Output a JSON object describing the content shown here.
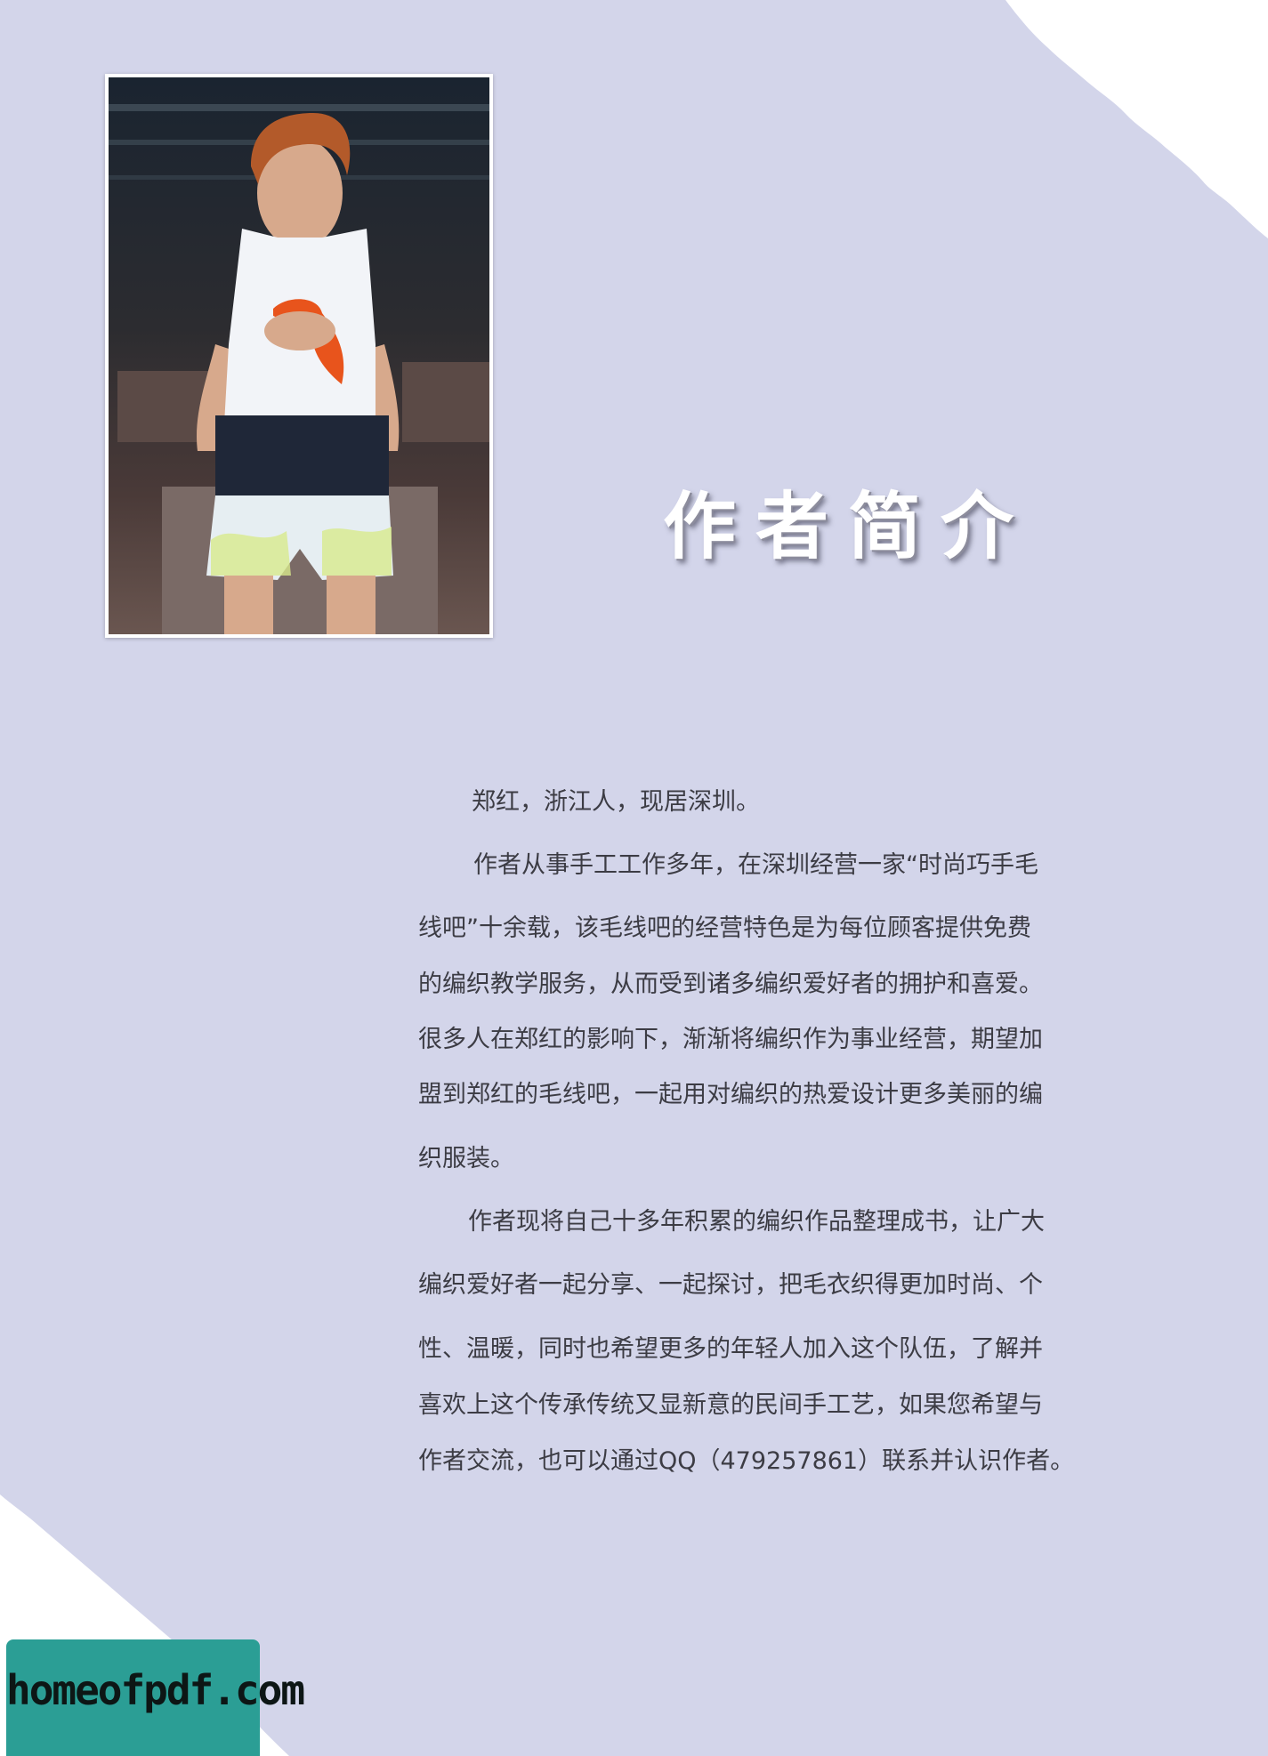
{
  "heading": "作者简介",
  "bio": {
    "lines": [
      "郑红，浙江人，现居深圳。",
      "作者从事手工工作多年，在深圳经营一家“时尚巧手毛",
      "线吧”十余载，该毛线吧的经营特色是为每位顾客提供免费",
      "的编织教学服务，从而受到诸多编织爱好者的拥护和喜爱。",
      "很多人在郑红的影响下，渐渐将编织作为事业经营，期望加",
      "盟到郑红的毛线吧，一起用对编织的热爱设计更多美丽的编",
      "织服装。",
      "作者现将自己十多年积累的编织作品整理成书，让广大",
      "编织爱好者一起分享、一起探讨，把毛衣织得更加时尚、个",
      "性、温暖，同时也希望更多的年轻人加入这个队伍，了解并",
      "喜欢上这个传承传统又显新意的民间手工艺，如果您希望与",
      "作者交流，也可以通过QQ（479257861）联系并认识作者。"
    ]
  },
  "watermark": "homeofpdf.com",
  "colors": {
    "background": "#d3d5ea",
    "corner": "#ffffff",
    "badge": "#2b9e95",
    "text": "#3c3c44"
  }
}
